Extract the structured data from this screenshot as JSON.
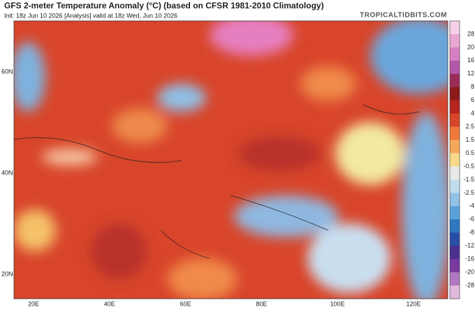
{
  "header": {
    "title": "GFS 2-meter Temperature Anomaly (°C) (based on CFSR 1981-2010 Climatology)",
    "subtitle": "Init: 18z Jun 10 2026   [Analysis]   valid at 18z Wed, Jun 10 2026",
    "brand": "TROPICALTIDBITS.COM"
  },
  "map": {
    "lat_labels": [
      "60N",
      "40N",
      "20N"
    ],
    "lon_labels": [
      "20E",
      "40E",
      "60E",
      "80E",
      "100E",
      "120E"
    ]
  },
  "colorbar": {
    "labels": [
      "28",
      "20",
      "16",
      "12",
      "8",
      "6",
      "4",
      "2.5",
      "1.5",
      "0.5",
      "-0.5",
      "-1.5",
      "-2.5",
      "-4",
      "-6",
      "-8",
      "-12",
      "-16",
      "-20",
      "-28"
    ]
  }
}
